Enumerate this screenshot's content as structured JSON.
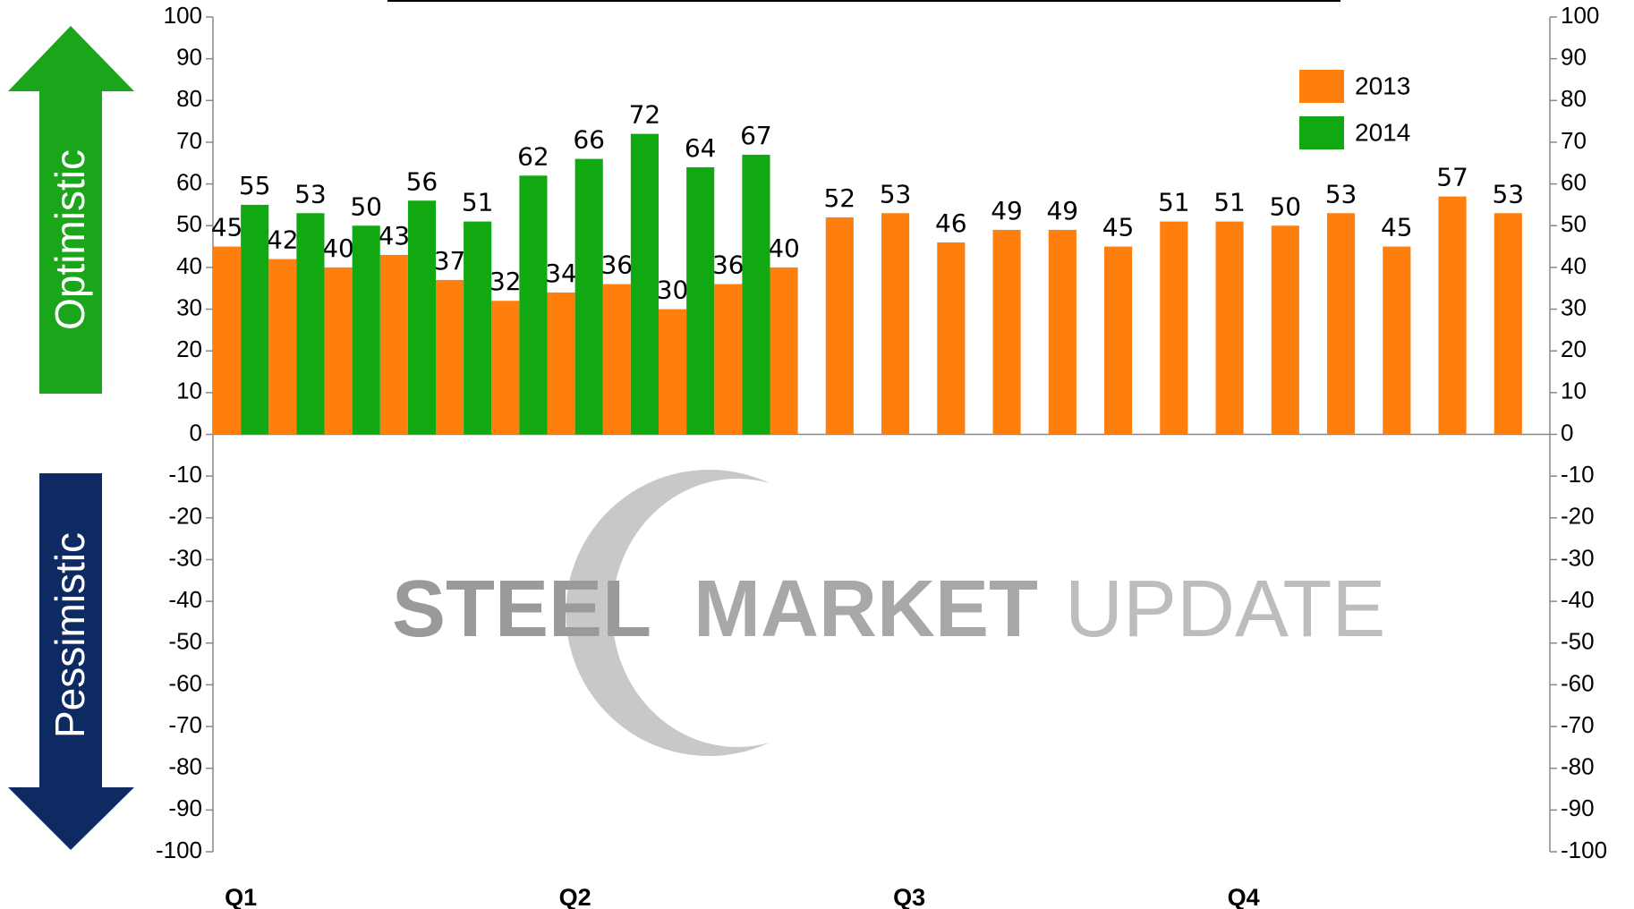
{
  "chart_data": {
    "type": "bar",
    "categories": [
      "Q1",
      null,
      null,
      null,
      null,
      null,
      "Q2",
      null,
      null,
      null,
      null,
      null,
      "Q3",
      null,
      null,
      null,
      null,
      null,
      "Q4",
      null,
      null,
      null,
      null,
      null
    ],
    "series": [
      {
        "name": "2013",
        "color": "#ff7f0e",
        "values": [
          45,
          42,
          40,
          43,
          37,
          32,
          34,
          36,
          30,
          36,
          40,
          52,
          53,
          46,
          49,
          49,
          45,
          51,
          51,
          50,
          53,
          45,
          57,
          53
        ]
      },
      {
        "name": "2014",
        "color": "#12a812",
        "values": [
          55,
          53,
          50,
          56,
          51,
          62,
          66,
          72,
          64,
          67,
          null,
          null,
          null,
          null,
          null,
          null,
          null,
          null,
          null,
          null,
          null,
          null,
          null,
          null
        ]
      }
    ],
    "ylim": [
      -100,
      100
    ],
    "yticks": [
      -100,
      -90,
      -80,
      -70,
      -60,
      -50,
      -40,
      -30,
      -20,
      -10,
      0,
      10,
      20,
      30,
      40,
      50,
      60,
      70,
      80,
      90,
      100
    ],
    "legend": "top-right",
    "annotations": [
      "Optimistic",
      "Pessimistic"
    ],
    "watermark": [
      "STEEL",
      "MARKET",
      "UPDATE"
    ]
  }
}
